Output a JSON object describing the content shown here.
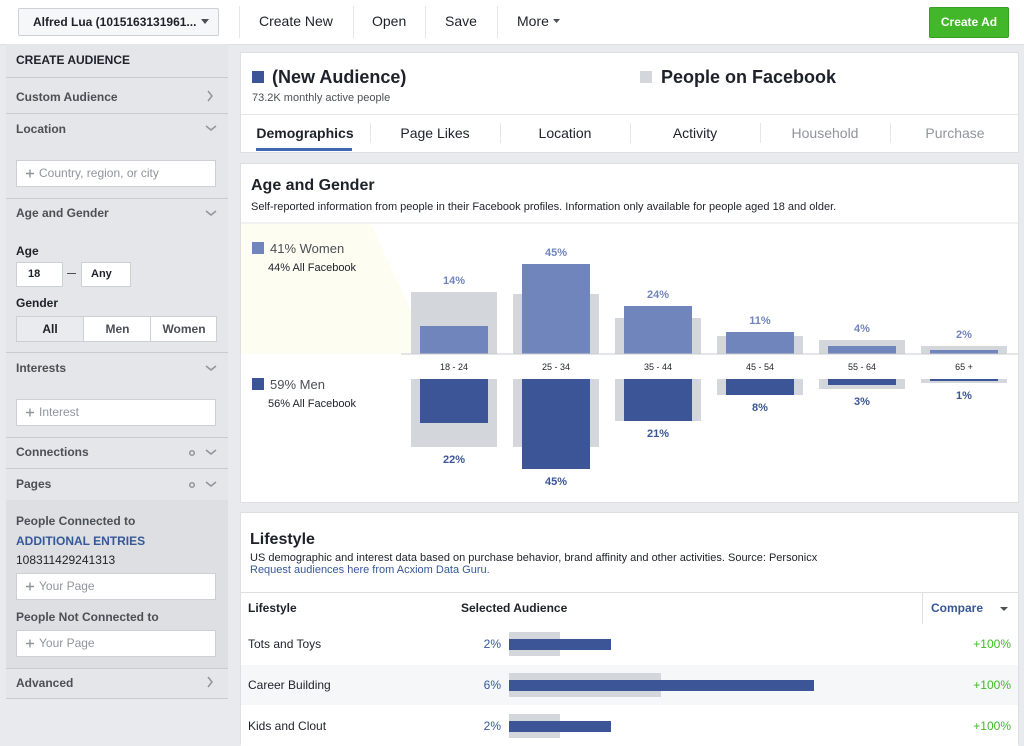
{
  "toolbar": {
    "account": "Alfred Lua (1015163131961...",
    "menu": [
      "Create New",
      "Open",
      "Save",
      "More"
    ],
    "create_ad": "Create Ad"
  },
  "sidebar": {
    "title": "CREATE AUDIENCE",
    "custom_audience": "Custom Audience",
    "location": {
      "label": "Location",
      "placeholder": "Country, region, or city"
    },
    "age_gender": {
      "label": "Age and Gender",
      "age_label": "Age",
      "age_min": "18",
      "age_max": "Any",
      "gender_label": "Gender",
      "genders": [
        "All",
        "Men",
        "Women"
      ]
    },
    "interests": {
      "label": "Interests",
      "placeholder": "Interest"
    },
    "connections": "Connections",
    "pages": {
      "label": "Pages",
      "connected_label": "People Connected to",
      "additional_entries": "ADDITIONAL ENTRIES",
      "connected_id": "108311429241313",
      "connected_placeholder": "Your Page",
      "not_connected_label": "People Not Connected to",
      "not_connected_placeholder": "Your Page"
    },
    "advanced": "Advanced"
  },
  "audience": {
    "name": "(New Audience)",
    "size": "73.2K monthly active people",
    "comparison": "People on Facebook"
  },
  "tabs": [
    "Demographics",
    "Page Likes",
    "Location",
    "Activity",
    "Household",
    "Purchase"
  ],
  "chart_data": {
    "type": "bar",
    "title": "Age and Gender",
    "subtitle": "Self-reported information from people in their Facebook profiles. Information only available for people aged 18 and older.",
    "categories": [
      "18 - 24",
      "25 - 34",
      "35 - 44",
      "45 - 54",
      "55 - 64",
      "65 +"
    ],
    "series": [
      {
        "name": "41% Women",
        "color": "#7185bd",
        "values": [
          14,
          45,
          24,
          11,
          4,
          2
        ],
        "value_labels": [
          "14%",
          "45%",
          "24%",
          "11%",
          "4%",
          "2%"
        ],
        "all_facebook_label": "44% All Facebook",
        "all_facebook_values": [
          31,
          30,
          18,
          9,
          7,
          4
        ],
        "all_facebook_color": "#d3d6db"
      },
      {
        "name": "59% Men",
        "color": "#3b5596",
        "values": [
          22,
          45,
          21,
          8,
          3,
          1
        ],
        "value_labels": [
          "22%",
          "45%",
          "21%",
          "8%",
          "3%",
          "1%"
        ],
        "all_facebook_label": "56% All Facebook",
        "all_facebook_values": [
          34,
          34,
          21,
          8,
          5,
          2
        ],
        "all_facebook_color": "#d3d6db"
      }
    ]
  },
  "lifestyle": {
    "title": "Lifestyle",
    "description": "US demographic and interest data based on purchase behavior, brand affinity and other activities. Source: Personicx",
    "link": "Request audiences here from Acxiom Data Guru.",
    "columns": [
      "Lifestyle",
      "Selected Audience",
      "Compare"
    ],
    "rows": [
      {
        "name": "Tots and Toys",
        "value": 2,
        "value_label": "2%",
        "all_facebook": 1,
        "compare": "+100%"
      },
      {
        "name": "Career Building",
        "value": 6,
        "value_label": "6%",
        "all_facebook": 3,
        "compare": "+100%"
      },
      {
        "name": "Kids and Clout",
        "value": 2,
        "value_label": "2%",
        "all_facebook": 1,
        "compare": "+100%"
      }
    ]
  }
}
